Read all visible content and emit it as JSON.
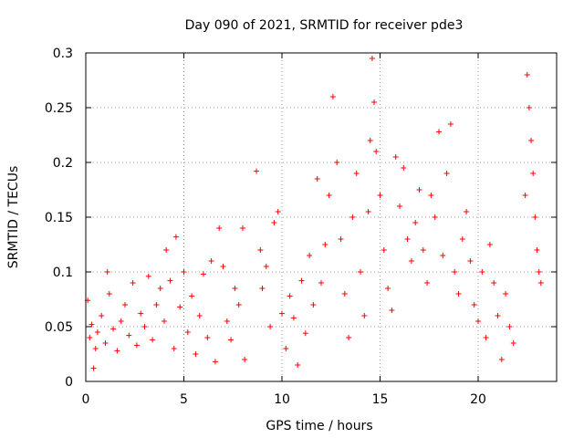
{
  "chart_data": {
    "type": "scatter",
    "title": "Day 090 of 2021, SRMTID for receiver pde3",
    "xlabel": "GPS time / hours",
    "ylabel": "SRMTID / TECUs",
    "xlim": [
      0,
      24
    ],
    "ylim": [
      0,
      0.3
    ],
    "xticks": [
      0,
      5,
      10,
      15,
      20
    ],
    "xtick_labels": [
      "0",
      "5",
      "10",
      "15",
      "20"
    ],
    "yticks": [
      0,
      0.05,
      0.1,
      0.15,
      0.2,
      0.25,
      0.3
    ],
    "ytick_labels": [
      "0",
      "0.05",
      "0.1",
      "0.15",
      "0.2",
      "0.25",
      "0.3"
    ],
    "grid": true,
    "marker": "+",
    "series": [
      {
        "name": "SRMTID",
        "color": "#ff0000",
        "points": [
          [
            0.1,
            0.074
          ],
          [
            0.2,
            0.04
          ],
          [
            0.3,
            0.052
          ],
          [
            0.4,
            0.012
          ],
          [
            0.5,
            0.03
          ],
          [
            0.6,
            0.045
          ],
          [
            0.8,
            0.06
          ],
          [
            1.0,
            0.035
          ],
          [
            1.1,
            0.1
          ],
          [
            1.2,
            0.08
          ],
          [
            1.4,
            0.048
          ],
          [
            1.6,
            0.028
          ],
          [
            1.8,
            0.055
          ],
          [
            2.0,
            0.07
          ],
          [
            2.2,
            0.042
          ],
          [
            2.4,
            0.09
          ],
          [
            2.6,
            0.033
          ],
          [
            2.8,
            0.062
          ],
          [
            3.0,
            0.05
          ],
          [
            3.2,
            0.096
          ],
          [
            3.4,
            0.038
          ],
          [
            3.6,
            0.07
          ],
          [
            3.8,
            0.085
          ],
          [
            4.0,
            0.055
          ],
          [
            4.1,
            0.12
          ],
          [
            4.3,
            0.092
          ],
          [
            4.5,
            0.03
          ],
          [
            4.6,
            0.132
          ],
          [
            4.8,
            0.068
          ],
          [
            5.0,
            0.1
          ],
          [
            5.2,
            0.045
          ],
          [
            5.4,
            0.078
          ],
          [
            5.6,
            0.025
          ],
          [
            5.8,
            0.06
          ],
          [
            6.0,
            0.098
          ],
          [
            6.2,
            0.04
          ],
          [
            6.4,
            0.11
          ],
          [
            6.6,
            0.018
          ],
          [
            6.8,
            0.14
          ],
          [
            7.0,
            0.105
          ],
          [
            7.2,
            0.055
          ],
          [
            7.4,
            0.038
          ],
          [
            7.6,
            0.085
          ],
          [
            7.8,
            0.07
          ],
          [
            8.0,
            0.14
          ],
          [
            8.1,
            0.02
          ],
          [
            8.7,
            0.192
          ],
          [
            8.9,
            0.12
          ],
          [
            9.0,
            0.085
          ],
          [
            9.2,
            0.105
          ],
          [
            9.4,
            0.05
          ],
          [
            9.6,
            0.145
          ],
          [
            9.8,
            0.155
          ],
          [
            10.0,
            0.062
          ],
          [
            10.2,
            0.03
          ],
          [
            10.4,
            0.078
          ],
          [
            10.6,
            0.058
          ],
          [
            10.8,
            0.015
          ],
          [
            11.0,
            0.092
          ],
          [
            11.2,
            0.044
          ],
          [
            11.4,
            0.115
          ],
          [
            11.6,
            0.07
          ],
          [
            11.8,
            0.185
          ],
          [
            12.0,
            0.09
          ],
          [
            12.2,
            0.125
          ],
          [
            12.4,
            0.17
          ],
          [
            12.6,
            0.26
          ],
          [
            12.8,
            0.2
          ],
          [
            13.0,
            0.13
          ],
          [
            13.2,
            0.08
          ],
          [
            13.4,
            0.04
          ],
          [
            13.6,
            0.15
          ],
          [
            13.8,
            0.19
          ],
          [
            14.0,
            0.1
          ],
          [
            14.2,
            0.06
          ],
          [
            14.4,
            0.155
          ],
          [
            14.5,
            0.22
          ],
          [
            14.6,
            0.295
          ],
          [
            14.7,
            0.255
          ],
          [
            14.8,
            0.21
          ],
          [
            15.0,
            0.17
          ],
          [
            15.2,
            0.12
          ],
          [
            15.4,
            0.085
          ],
          [
            15.6,
            0.065
          ],
          [
            15.8,
            0.205
          ],
          [
            16.0,
            0.16
          ],
          [
            16.2,
            0.195
          ],
          [
            16.4,
            0.13
          ],
          [
            16.6,
            0.11
          ],
          [
            16.8,
            0.145
          ],
          [
            17.0,
            0.175
          ],
          [
            17.2,
            0.12
          ],
          [
            17.4,
            0.09
          ],
          [
            17.6,
            0.17
          ],
          [
            17.8,
            0.15
          ],
          [
            18.0,
            0.228
          ],
          [
            18.2,
            0.115
          ],
          [
            18.4,
            0.19
          ],
          [
            18.6,
            0.235
          ],
          [
            18.8,
            0.1
          ],
          [
            19.0,
            0.08
          ],
          [
            19.2,
            0.13
          ],
          [
            19.4,
            0.155
          ],
          [
            19.6,
            0.11
          ],
          [
            19.8,
            0.07
          ],
          [
            20.0,
            0.055
          ],
          [
            20.2,
            0.1
          ],
          [
            20.4,
            0.04
          ],
          [
            20.6,
            0.125
          ],
          [
            20.8,
            0.09
          ],
          [
            21.0,
            0.06
          ],
          [
            21.2,
            0.02
          ],
          [
            21.4,
            0.08
          ],
          [
            21.6,
            0.05
          ],
          [
            21.8,
            0.035
          ],
          [
            22.4,
            0.17
          ],
          [
            22.5,
            0.28
          ],
          [
            22.6,
            0.25
          ],
          [
            22.7,
            0.22
          ],
          [
            22.8,
            0.19
          ],
          [
            22.9,
            0.15
          ],
          [
            23.0,
            0.12
          ],
          [
            23.1,
            0.1
          ],
          [
            23.2,
            0.09
          ]
        ]
      }
    ]
  }
}
